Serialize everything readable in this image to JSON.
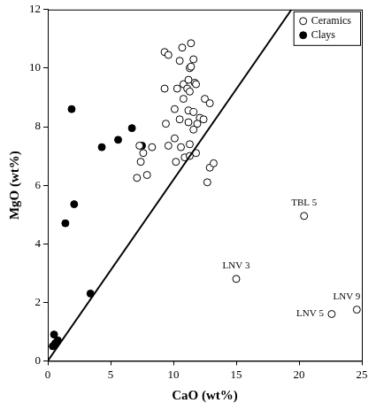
{
  "chart_data": {
    "type": "scatter",
    "x_label": "CaO (wt%)",
    "y_label": "MgO (wt%)",
    "xlim": [
      0,
      25
    ],
    "xticks": [
      0,
      5,
      10,
      15,
      20,
      25
    ],
    "ylim": [
      0,
      12
    ],
    "yticks": [
      0,
      2,
      4,
      6,
      8,
      10,
      12
    ],
    "grid": false,
    "legend": "top-right",
    "series": [
      {
        "name": "Ceramics",
        "color": "#000000",
        "marker": "circle_open",
        "x": [
          9.3,
          9.6,
          10.7,
          11.4,
          10.5,
          11.6,
          11.3,
          11.4,
          9.3,
          10.3,
          10.8,
          11.2,
          11.7,
          11.8,
          11.1,
          11.3,
          10.8,
          12.5,
          12.9,
          10.1,
          11.2,
          11.6,
          12.1,
          12.4,
          9.4,
          10.5,
          11.2,
          11.9,
          11.6,
          7.3,
          7.6,
          8.3,
          10.1,
          9.6,
          10.6,
          11.3,
          7.4,
          7.9,
          7.1,
          10.2,
          10.9,
          11.3,
          11.8,
          12.9,
          13.2,
          12.7,
          20.4,
          15.0,
          22.6,
          24.6
        ],
        "values": [
          10.55,
          10.45,
          10.7,
          10.85,
          10.25,
          10.3,
          10.0,
          10.05,
          9.3,
          9.3,
          9.45,
          9.6,
          9.5,
          9.45,
          9.3,
          9.2,
          8.95,
          8.95,
          8.8,
          8.6,
          8.55,
          8.5,
          8.3,
          8.25,
          8.1,
          8.25,
          8.15,
          8.1,
          7.9,
          7.35,
          7.1,
          7.3,
          7.6,
          7.35,
          7.3,
          7.4,
          6.8,
          6.35,
          6.25,
          6.8,
          6.95,
          7.0,
          7.1,
          6.6,
          6.75,
          6.1,
          4.95,
          2.8,
          1.6,
          1.75
        ]
      },
      {
        "name": "Clays",
        "color": "#000000",
        "marker": "circle_filled",
        "x": [
          0.4,
          0.5,
          0.6,
          0.8,
          1.9,
          2.1,
          1.4,
          3.4,
          4.3,
          5.6,
          6.7,
          7.5
        ],
        "values": [
          0.5,
          0.9,
          0.6,
          0.7,
          8.6,
          5.35,
          4.7,
          2.3,
          7.3,
          7.55,
          7.95,
          7.35
        ]
      }
    ],
    "reference_line": {
      "x": [
        0,
        19.4
      ],
      "values": [
        0,
        12
      ],
      "color": "#000000",
      "line_style": "solid"
    },
    "annotations": [
      {
        "text": "TBL 5",
        "x": 20.4,
        "y": 4.95,
        "position": "above"
      },
      {
        "text": "LNV 3",
        "x": 15.0,
        "y": 2.8,
        "position": "above"
      },
      {
        "text": "LNV 9",
        "x": 24.6,
        "y": 1.75,
        "position": "above-left"
      },
      {
        "text": "LNV 5",
        "x": 22.6,
        "y": 1.6,
        "position": "left"
      }
    ]
  }
}
